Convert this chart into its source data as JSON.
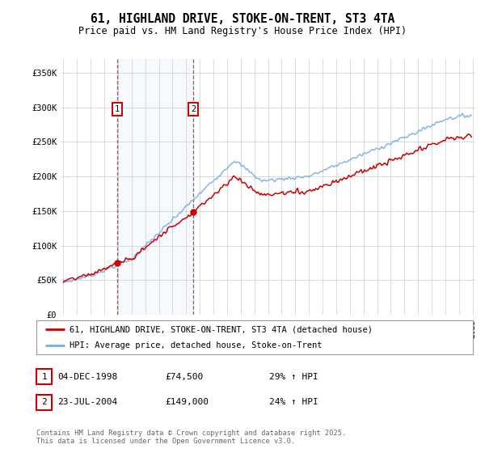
{
  "title": "61, HIGHLAND DRIVE, STOKE-ON-TRENT, ST3 4TA",
  "subtitle": "Price paid vs. HM Land Registry's House Price Index (HPI)",
  "legend_line1": "61, HIGHLAND DRIVE, STOKE-ON-TRENT, ST3 4TA (detached house)",
  "legend_line2": "HPI: Average price, detached house, Stoke-on-Trent",
  "footnote": "Contains HM Land Registry data © Crown copyright and database right 2025.\nThis data is licensed under the Open Government Licence v3.0.",
  "transaction1": {
    "num": 1,
    "date": "04-DEC-1998",
    "price": 74500,
    "hpi_note": "29% ↑ HPI"
  },
  "transaction2": {
    "num": 2,
    "date": "23-JUL-2004",
    "price": 149000,
    "hpi_note": "24% ↑ HPI"
  },
  "red_color": "#cc0000",
  "blue_color": "#7aade0",
  "shading_color": "#ddeeff",
  "background_color": "#ffffff",
  "grid_color": "#cccccc",
  "ylim": [
    0,
    370000
  ],
  "yticks": [
    0,
    50000,
    100000,
    150000,
    200000,
    250000,
    300000,
    350000
  ],
  "ytick_labels": [
    "£0",
    "£50K",
    "£100K",
    "£150K",
    "£200K",
    "£250K",
    "£300K",
    "£350K"
  ],
  "year_start": 1995,
  "year_end": 2025,
  "t1_year": 1998,
  "t1_month": 12,
  "t2_year": 2004,
  "t2_month": 7,
  "t1_price": 74500,
  "t2_price": 149000
}
